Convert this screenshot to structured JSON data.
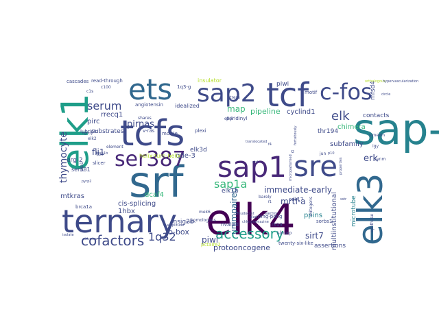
{
  "palette": {
    "dark_purple": "#440154",
    "indigo": "#482878",
    "slate_blue": "#3e4a89",
    "steel_blue": "#31688e",
    "teal": "#26828e",
    "sea_green": "#1f9e89",
    "green": "#35b779",
    "lime": "#6ece58",
    "yellow_green": "#b5de2b",
    "yellow": "#fde725"
  },
  "words": [
    {
      "text": "elk4",
      "color": "#440154"
    },
    {
      "text": "sap-1",
      "color": "#26828e"
    },
    {
      "text": "tcfs",
      "color": "#3e4a89"
    },
    {
      "text": "srf",
      "color": "#31688e"
    },
    {
      "text": "ternary",
      "color": "#3e4a89"
    },
    {
      "text": "elk1",
      "color": "#1f9e89"
    },
    {
      "text": "elk3",
      "color": "#31688e"
    },
    {
      "text": "sap1",
      "color": "#482878"
    },
    {
      "text": "sre",
      "color": "#3e4a89"
    },
    {
      "text": "tcf",
      "color": "#3e4a89"
    },
    {
      "text": "ets",
      "color": "#31688e"
    },
    {
      "text": "sap2",
      "color": "#3e4a89"
    },
    {
      "text": "c-fos",
      "color": "#3e4a89"
    },
    {
      "text": "ser387",
      "color": "#482878"
    },
    {
      "text": "sap1a",
      "color": "#35b779"
    },
    {
      "text": "accessory",
      "color": "#1f9e89"
    },
    {
      "text": "cofactors",
      "color": "#3e4a89"
    },
    {
      "text": "1q32",
      "color": "#3e4a89"
    },
    {
      "text": "serum",
      "color": "#3e4a89"
    },
    {
      "text": "elk",
      "color": "#3e4a89"
    },
    {
      "text": "thymocyte",
      "color": "#3e4a89"
    },
    {
      "text": "map",
      "color": "#35b779"
    },
    {
      "text": "pirnas",
      "color": "#3e4a89"
    },
    {
      "text": "immediate-early",
      "color": "#3e4a89"
    },
    {
      "text": "mrtf-a",
      "color": "#3e4a89"
    },
    {
      "text": "unimpaired",
      "color": "#31688e"
    },
    {
      "text": "erk",
      "color": "#3e4a89"
    },
    {
      "text": "sirt7",
      "color": "#3e4a89"
    },
    {
      "text": "protooncogene",
      "color": "#3e4a89"
    },
    {
      "text": "fli1",
      "color": "#3e4a89"
    },
    {
      "text": "piwi",
      "color": "#3e4a89"
    },
    {
      "text": "b-box",
      "color": "#3e4a89"
    },
    {
      "text": "qde-3",
      "color": "#3e4a89"
    },
    {
      "text": "pipeline",
      "color": "#35b779"
    },
    {
      "text": "cyclind1",
      "color": "#3e4a89"
    },
    {
      "text": "subfamily",
      "color": "#3e4a89"
    },
    {
      "text": "multiinstitutional",
      "color": "#3e4a89"
    },
    {
      "text": "microtube",
      "color": "#26828e"
    },
    {
      "text": "chimera",
      "color": "#35b779"
    },
    {
      "text": "contacts",
      "color": "#3e4a89"
    },
    {
      "text": "rrecq1",
      "color": "#3e4a89"
    },
    {
      "text": "pirc",
      "color": "#3e4a89"
    },
    {
      "text": "erg-2",
      "color": "#3e4a89"
    },
    {
      "text": "dcaf4",
      "color": "#35b779"
    },
    {
      "text": "1hbx",
      "color": "#3e4a89"
    },
    {
      "text": "mtkras",
      "color": "#3e4a89"
    },
    {
      "text": "cis-splicing",
      "color": "#3e4a89"
    },
    {
      "text": "insig2b",
      "color": "#3e4a89"
    },
    {
      "text": "ppins",
      "color": "#26828e"
    },
    {
      "text": "assertions",
      "color": "#3e4a89"
    },
    {
      "text": "mfsd4",
      "color": "#3e4a89"
    },
    {
      "text": "thr194",
      "color": "#3e4a89"
    },
    {
      "text": "elk3d",
      "color": "#3e4a89"
    },
    {
      "text": "elk1b",
      "color": "#3e4a89"
    },
    {
      "text": "helix-turn-helix",
      "color": "#b5de2b"
    },
    {
      "text": "ser381",
      "color": "#3e4a89"
    },
    {
      "text": "substrates",
      "color": "#3e4a89"
    },
    {
      "text": "idealized",
      "color": "#3e4a89"
    },
    {
      "text": "angiotensin",
      "color": "#3e4a89"
    },
    {
      "text": "lubricin",
      "color": "#3e4a89"
    },
    {
      "text": "cascades",
      "color": "#3e4a89"
    },
    {
      "text": "read-through",
      "color": "#3e4a89"
    },
    {
      "text": "piwi",
      "color": "#3e4a89"
    },
    {
      "text": "pyridinyl",
      "color": "#3e4a89"
    },
    {
      "text": "plexi",
      "color": "#3e4a89"
    },
    {
      "text": "morrie",
      "color": "#3e4a89"
    },
    {
      "text": "v-ras",
      "color": "#3e4a89"
    },
    {
      "text": "slicer",
      "color": "#3e4a89"
    },
    {
      "text": "brca1a",
      "color": "#3e4a89"
    },
    {
      "text": "mek6",
      "color": "#3e4a89"
    },
    {
      "text": "homologous",
      "color": "#3e4a89"
    },
    {
      "text": "rivalled",
      "color": "#3e4a89"
    },
    {
      "text": "cdk17",
      "color": "#3e4a89"
    },
    {
      "text": "sorbs1",
      "color": "#3e4a89"
    },
    {
      "text": "rk13",
      "color": "#3e4a89"
    },
    {
      "text": "slmap",
      "color": "#3e4a89"
    },
    {
      "text": "twenty-six-like",
      "color": "#3e4a89"
    },
    {
      "text": "ping-pong",
      "color": "#3e4a89"
    },
    {
      "text": "pctaire2",
      "color": "#b5de2b"
    },
    {
      "text": "synthase",
      "color": "#3e4a89"
    },
    {
      "text": "ptp1",
      "color": "#3e4a89"
    },
    {
      "text": "synm",
      "color": "#3e4a89"
    },
    {
      "text": "element",
      "color": "#3e4a89"
    },
    {
      "text": "1q3-g",
      "color": "#3e4a89"
    },
    {
      "text": "mitogens",
      "color": "#3e4a89"
    },
    {
      "text": "insulator",
      "color": "#b5de2b"
    },
    {
      "text": "motif",
      "color": "#3e4a89"
    },
    {
      "text": "orthologous",
      "color": "#b5de2b"
    },
    {
      "text": "glad",
      "color": "#3e4a89"
    },
    {
      "text": "stress",
      "color": "#3e4a89"
    },
    {
      "text": "synexin",
      "color": "#3e4a89"
    },
    {
      "text": "translocated",
      "color": "#3e4a89"
    },
    {
      "text": "elk2",
      "color": "#3e4a89"
    },
    {
      "text": "c1s",
      "color": "#3e4a89"
    },
    {
      "text": "mapk",
      "color": "#3e4a89"
    },
    {
      "text": "brca1b",
      "color": "#3e4a89"
    },
    {
      "text": "shares",
      "color": "#3e4a89"
    },
    {
      "text": "jun",
      "color": "#3e4a89"
    },
    {
      "text": "hypervascularization",
      "color": "#3e4a89"
    },
    {
      "text": "igy",
      "color": "#3e4a89"
    },
    {
      "text": "p2x",
      "color": "#3e4a89"
    },
    {
      "text": "barely",
      "color": "#3e4a89"
    },
    {
      "text": "properties",
      "color": "#3e4a89"
    },
    {
      "text": "pseudocyst",
      "color": "#3e4a89"
    },
    {
      "text": "f4",
      "color": "#3e4a89"
    },
    {
      "text": "fortuitously",
      "color": "#3e4a89"
    },
    {
      "text": "isolate",
      "color": "#3e4a89"
    },
    {
      "text": "ctd",
      "color": "#3e4a89"
    },
    {
      "text": "pyrp2",
      "color": "#3e4a89"
    },
    {
      "text": "extreme",
      "color": "#3e4a89"
    },
    {
      "text": "elk5",
      "color": "#3e4a89"
    },
    {
      "text": "c100",
      "color": "#3e4a89"
    },
    {
      "text": "p10",
      "color": "#3e4a89"
    },
    {
      "text": "circle",
      "color": "#3e4a89"
    },
    {
      "text": "sstr",
      "color": "#3e4a89"
    },
    {
      "text": "lightly",
      "color": "#3e4a89"
    },
    {
      "text": "amplitude",
      "color": "#3e4a89"
    },
    {
      "text": "micropatterned",
      "color": "#3e4a89"
    },
    {
      "text": "f1",
      "color": "#3e4a89"
    },
    {
      "text": "f2",
      "color": "#3e4a89"
    },
    {
      "text": "chlorpromazine",
      "color": "#3e4a89"
    },
    {
      "text": "ejection",
      "color": "#3e4a89"
    }
  ]
}
